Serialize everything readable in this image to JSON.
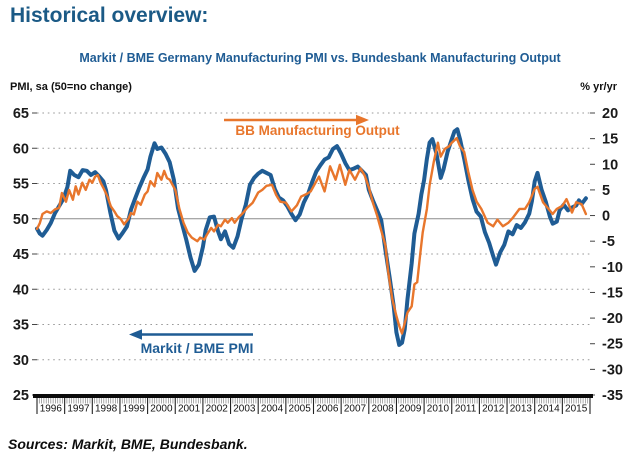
{
  "page": {
    "title": "Historical overview:"
  },
  "chart": {
    "title": "Markit / BME Germany Manufacturing PMI vs. Bundesbank Manufacturing Output",
    "left_axis_title": "PMI, sa (50=no change)",
    "right_axis_title": "% yr/yr",
    "annotations": {
      "output_label": "BB Manufacturing Output",
      "pmi_label": "Markit / BME PMI"
    }
  },
  "footer": {
    "sources": "Sources: Markit, BME, Bundesbank."
  },
  "colors": {
    "title_blue": "#1b5a86",
    "pmi_line": "#1f5c94",
    "output_line": "#e8762c",
    "grid": "#9a9a9a",
    "reference_line": "#8c8c8c",
    "axis": "#0a0a0a"
  },
  "chart_data": {
    "type": "line",
    "title": "Markit / BME Germany Manufacturing PMI vs. Bundesbank Manufacturing Output",
    "x_axis": {
      "labels": [
        "1996",
        "1997",
        "1998",
        "1999",
        "2000",
        "2001",
        "2002",
        "2003",
        "2004",
        "2005",
        "2006",
        "2007",
        "2008",
        "2009",
        "2010",
        "2011",
        "2012",
        "2013",
        "2014",
        "2015"
      ],
      "range": [
        1996,
        2016
      ]
    },
    "left_axis": {
      "label": "PMI, sa (50=no change)",
      "ticks": [
        65,
        60,
        55,
        50,
        45,
        40,
        35,
        30,
        25
      ],
      "range": [
        25,
        65
      ],
      "reference_line": 50
    },
    "right_axis": {
      "label": "% yr/yr",
      "ticks": [
        20,
        15,
        10,
        5,
        0,
        -5,
        -10,
        -15,
        -20,
        -25,
        -30,
        -35
      ],
      "range": [
        -35,
        20
      ]
    },
    "grid": "dotted horizontal at left-axis ticks",
    "legend_position": "in-plot text annotations with arrows",
    "series": [
      {
        "name": "Markit / BME PMI",
        "axis": "left",
        "color": "#1f5c94",
        "points": [
          [
            1996.0,
            48.6
          ],
          [
            1996.1,
            47.9
          ],
          [
            1996.2,
            47.6
          ],
          [
            1996.35,
            48.4
          ],
          [
            1996.5,
            49.4
          ],
          [
            1996.65,
            50.8
          ],
          [
            1996.8,
            51.8
          ],
          [
            1996.95,
            52.8
          ],
          [
            1997.1,
            54.5
          ],
          [
            1997.2,
            56.8
          ],
          [
            1997.35,
            56.2
          ],
          [
            1997.5,
            55.9
          ],
          [
            1997.65,
            56.9
          ],
          [
            1997.8,
            56.8
          ],
          [
            1997.95,
            56.2
          ],
          [
            1998.1,
            56.6
          ],
          [
            1998.25,
            56.0
          ],
          [
            1998.4,
            55.3
          ],
          [
            1998.5,
            54.0
          ],
          [
            1998.65,
            50.9
          ],
          [
            1998.8,
            48.3
          ],
          [
            1998.95,
            47.2
          ],
          [
            1999.1,
            48.0
          ],
          [
            1999.25,
            48.9
          ],
          [
            1999.4,
            51.3
          ],
          [
            1999.55,
            52.9
          ],
          [
            1999.7,
            54.4
          ],
          [
            1999.85,
            55.8
          ],
          [
            2000.0,
            57.0
          ],
          [
            2000.1,
            58.8
          ],
          [
            2000.25,
            60.7
          ],
          [
            2000.35,
            59.9
          ],
          [
            2000.5,
            60.1
          ],
          [
            2000.65,
            59.2
          ],
          [
            2000.8,
            58.0
          ],
          [
            2000.95,
            55.5
          ],
          [
            2001.1,
            51.5
          ],
          [
            2001.25,
            49.2
          ],
          [
            2001.4,
            47.0
          ],
          [
            2001.55,
            44.5
          ],
          [
            2001.7,
            42.6
          ],
          [
            2001.85,
            43.5
          ],
          [
            2002.0,
            46.0
          ],
          [
            2002.1,
            48.4
          ],
          [
            2002.25,
            50.2
          ],
          [
            2002.4,
            50.3
          ],
          [
            2002.55,
            48.2
          ],
          [
            2002.65,
            47.1
          ],
          [
            2002.8,
            48.2
          ],
          [
            2002.95,
            46.4
          ],
          [
            2003.1,
            45.9
          ],
          [
            2003.25,
            47.5
          ],
          [
            2003.4,
            50.0
          ],
          [
            2003.55,
            52.0
          ],
          [
            2003.7,
            54.8
          ],
          [
            2003.85,
            55.8
          ],
          [
            2004.0,
            56.4
          ],
          [
            2004.15,
            56.8
          ],
          [
            2004.3,
            56.5
          ],
          [
            2004.45,
            56.2
          ],
          [
            2004.6,
            54.2
          ],
          [
            2004.75,
            53.0
          ],
          [
            2004.9,
            52.6
          ],
          [
            2005.05,
            51.8
          ],
          [
            2005.2,
            50.7
          ],
          [
            2005.35,
            49.8
          ],
          [
            2005.5,
            50.6
          ],
          [
            2005.65,
            52.3
          ],
          [
            2005.8,
            53.5
          ],
          [
            2005.95,
            55.2
          ],
          [
            2006.1,
            56.7
          ],
          [
            2006.25,
            57.6
          ],
          [
            2006.4,
            58.4
          ],
          [
            2006.55,
            58.7
          ],
          [
            2006.7,
            59.9
          ],
          [
            2006.85,
            60.3
          ],
          [
            2007.0,
            59.2
          ],
          [
            2007.15,
            57.9
          ],
          [
            2007.3,
            56.9
          ],
          [
            2007.45,
            57.1
          ],
          [
            2007.6,
            57.4
          ],
          [
            2007.75,
            56.8
          ],
          [
            2007.9,
            56.2
          ],
          [
            2008.0,
            54.1
          ],
          [
            2008.15,
            52.6
          ],
          [
            2008.3,
            51.2
          ],
          [
            2008.45,
            49.8
          ],
          [
            2008.6,
            45.6
          ],
          [
            2008.75,
            41.8
          ],
          [
            2008.9,
            37.6
          ],
          [
            2009.0,
            33.9
          ],
          [
            2009.1,
            32.1
          ],
          [
            2009.2,
            32.4
          ],
          [
            2009.3,
            34.3
          ],
          [
            2009.4,
            38.6
          ],
          [
            2009.55,
            43.7
          ],
          [
            2009.65,
            47.9
          ],
          [
            2009.8,
            50.7
          ],
          [
            2009.9,
            53.4
          ],
          [
            2010.0,
            55.5
          ],
          [
            2010.1,
            58.5
          ],
          [
            2010.2,
            60.8
          ],
          [
            2010.3,
            61.3
          ],
          [
            2010.45,
            59.2
          ],
          [
            2010.6,
            55.8
          ],
          [
            2010.7,
            57.0
          ],
          [
            2010.85,
            59.5
          ],
          [
            2011.0,
            61.3
          ],
          [
            2011.1,
            62.4
          ],
          [
            2011.2,
            62.7
          ],
          [
            2011.3,
            61.3
          ],
          [
            2011.45,
            58.5
          ],
          [
            2011.6,
            55.5
          ],
          [
            2011.75,
            52.8
          ],
          [
            2011.9,
            51.0
          ],
          [
            2012.05,
            50.3
          ],
          [
            2012.2,
            48.1
          ],
          [
            2012.35,
            46.6
          ],
          [
            2012.5,
            44.7
          ],
          [
            2012.6,
            43.5
          ],
          [
            2012.75,
            45.2
          ],
          [
            2012.9,
            46.3
          ],
          [
            2013.05,
            48.2
          ],
          [
            2013.2,
            47.8
          ],
          [
            2013.35,
            49.1
          ],
          [
            2013.5,
            48.7
          ],
          [
            2013.65,
            49.5
          ],
          [
            2013.8,
            50.7
          ],
          [
            2013.9,
            52.5
          ],
          [
            2014.0,
            55.3
          ],
          [
            2014.1,
            56.5
          ],
          [
            2014.25,
            54.1
          ],
          [
            2014.4,
            52.4
          ],
          [
            2014.55,
            50.3
          ],
          [
            2014.65,
            49.3
          ],
          [
            2014.8,
            49.6
          ],
          [
            2014.9,
            51.2
          ],
          [
            2015.05,
            52.0
          ],
          [
            2015.2,
            51.2
          ],
          [
            2015.35,
            51.6
          ],
          [
            2015.5,
            51.9
          ],
          [
            2015.6,
            52.6
          ],
          [
            2015.7,
            52.1
          ],
          [
            2015.85,
            52.9
          ]
        ]
      },
      {
        "name": "BB Manufacturing Output",
        "axis": "right",
        "color": "#e8762c",
        "points": [
          [
            1996.0,
            -2.6
          ],
          [
            1996.1,
            -1.5
          ],
          [
            1996.2,
            0.3
          ],
          [
            1996.35,
            0.8
          ],
          [
            1996.5,
            0.5
          ],
          [
            1996.65,
            1.2
          ],
          [
            1996.8,
            1.5
          ],
          [
            1996.9,
            4.4
          ],
          [
            1997.05,
            2.7
          ],
          [
            1997.16,
            5.0
          ],
          [
            1997.3,
            3.1
          ],
          [
            1997.4,
            5.7
          ],
          [
            1997.5,
            4.1
          ],
          [
            1997.64,
            6.4
          ],
          [
            1997.76,
            5.0
          ],
          [
            1997.9,
            7.0
          ],
          [
            1998.0,
            6.4
          ],
          [
            1998.1,
            7.6
          ],
          [
            1998.2,
            7.9
          ],
          [
            1998.3,
            6.4
          ],
          [
            1998.4,
            5.4
          ],
          [
            1998.55,
            3.7
          ],
          [
            1998.67,
            1.8
          ],
          [
            1998.8,
            0.8
          ],
          [
            1998.9,
            -0.1
          ],
          [
            1999.03,
            -0.7
          ],
          [
            1999.15,
            -1.7
          ],
          [
            1999.3,
            -0.7
          ],
          [
            1999.4,
            0.5
          ],
          [
            1999.5,
            0.2
          ],
          [
            1999.63,
            2.7
          ],
          [
            1999.75,
            2.1
          ],
          [
            1999.9,
            4.1
          ],
          [
            2000.0,
            4.7
          ],
          [
            2000.1,
            6.7
          ],
          [
            2000.25,
            5.7
          ],
          [
            2000.35,
            8.3
          ],
          [
            2000.5,
            7.0
          ],
          [
            2000.6,
            8.7
          ],
          [
            2000.7,
            7.3
          ],
          [
            2000.8,
            7.0
          ],
          [
            2001.0,
            5.0
          ],
          [
            2001.15,
            1.3
          ],
          [
            2001.3,
            -1.4
          ],
          [
            2001.45,
            -3.3
          ],
          [
            2001.6,
            -4.3
          ],
          [
            2001.8,
            -5.0
          ],
          [
            2001.9,
            -4.3
          ],
          [
            2002.05,
            -4.7
          ],
          [
            2002.15,
            -3.7
          ],
          [
            2002.3,
            -2.4
          ],
          [
            2002.4,
            -3.1
          ],
          [
            2002.55,
            -1.8
          ],
          [
            2002.65,
            -2.1
          ],
          [
            2002.8,
            -0.8
          ],
          [
            2002.9,
            -1.4
          ],
          [
            2003.05,
            -0.5
          ],
          [
            2003.15,
            -1.4
          ],
          [
            2003.3,
            -0.3
          ],
          [
            2003.45,
            0.5
          ],
          [
            2003.6,
            1.5
          ],
          [
            2003.8,
            2.5
          ],
          [
            2004.0,
            4.5
          ],
          [
            2004.15,
            5.0
          ],
          [
            2004.3,
            5.8
          ],
          [
            2004.5,
            6.0
          ],
          [
            2004.65,
            4.0
          ],
          [
            2004.8,
            2.7
          ],
          [
            2005.0,
            2.5
          ],
          [
            2005.2,
            0.8
          ],
          [
            2005.4,
            2.0
          ],
          [
            2005.55,
            3.7
          ],
          [
            2005.75,
            4.2
          ],
          [
            2005.9,
            4.7
          ],
          [
            2006.05,
            6.2
          ],
          [
            2006.2,
            7.6
          ],
          [
            2006.4,
            4.7
          ],
          [
            2006.6,
            9.6
          ],
          [
            2006.8,
            7.0
          ],
          [
            2006.95,
            9.9
          ],
          [
            2007.15,
            6.0
          ],
          [
            2007.3,
            8.9
          ],
          [
            2007.5,
            7.0
          ],
          [
            2007.7,
            9.2
          ],
          [
            2007.85,
            7.8
          ],
          [
            2008.0,
            5.5
          ],
          [
            2008.15,
            2.5
          ],
          [
            2008.3,
            0.0
          ],
          [
            2008.45,
            -2.9
          ],
          [
            2008.6,
            -5.8
          ],
          [
            2008.7,
            -11.0
          ],
          [
            2008.85,
            -16.3
          ],
          [
            2009.0,
            -19.6
          ],
          [
            2009.1,
            -21.5
          ],
          [
            2009.2,
            -23.0
          ],
          [
            2009.3,
            -21.0
          ],
          [
            2009.4,
            -18.9
          ],
          [
            2009.55,
            -17.7
          ],
          [
            2009.65,
            -13.4
          ],
          [
            2009.75,
            -13.0
          ],
          [
            2009.85,
            -7.9
          ],
          [
            2009.95,
            -3.3
          ],
          [
            2010.1,
            1.3
          ],
          [
            2010.2,
            5.9
          ],
          [
            2010.35,
            10.5
          ],
          [
            2010.5,
            14.2
          ],
          [
            2010.6,
            11.5
          ],
          [
            2010.75,
            13.0
          ],
          [
            2010.9,
            13.5
          ],
          [
            2011.0,
            14.2
          ],
          [
            2011.18,
            15.1
          ],
          [
            2011.3,
            13.5
          ],
          [
            2011.45,
            12.4
          ],
          [
            2011.6,
            8.5
          ],
          [
            2011.75,
            5.0
          ],
          [
            2011.9,
            2.7
          ],
          [
            2012.07,
            1.3
          ],
          [
            2012.3,
            -1.4
          ],
          [
            2012.5,
            -2.1
          ],
          [
            2012.65,
            -0.8
          ],
          [
            2012.85,
            -2.1
          ],
          [
            2013.05,
            -1.4
          ],
          [
            2013.2,
            -0.5
          ],
          [
            2013.45,
            1.3
          ],
          [
            2013.65,
            1.3
          ],
          [
            2013.8,
            2.6
          ],
          [
            2014.0,
            5.2
          ],
          [
            2014.1,
            5.6
          ],
          [
            2014.3,
            2.6
          ],
          [
            2014.5,
            1.3
          ],
          [
            2014.65,
            0.3
          ],
          [
            2014.8,
            1.3
          ],
          [
            2015.0,
            1.9
          ],
          [
            2015.15,
            3.2
          ],
          [
            2015.35,
            0.6
          ],
          [
            2015.5,
            2.6
          ],
          [
            2015.7,
            2.2
          ],
          [
            2015.85,
            0.3
          ]
        ]
      }
    ]
  }
}
